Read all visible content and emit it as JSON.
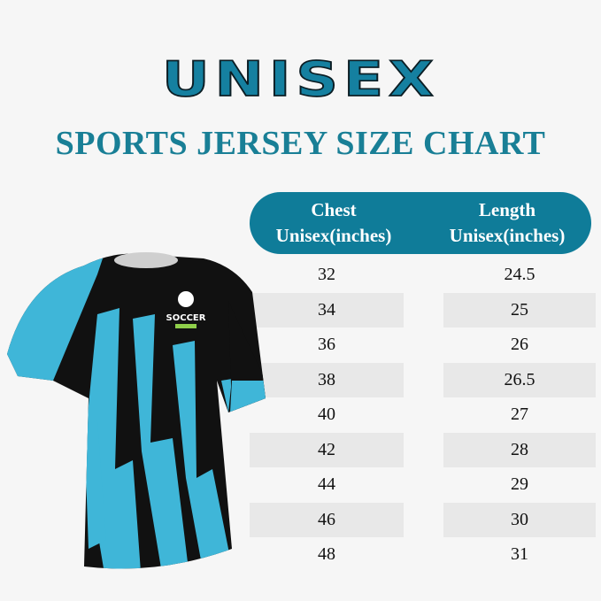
{
  "title": "UNISEX",
  "subtitle": "SPORTS JERSEY SIZE CHART",
  "table": {
    "headers": [
      {
        "line1": "Chest",
        "line2": "Unisex(inches)"
      },
      {
        "line1": "Length",
        "line2": "Unisex(inches)"
      }
    ],
    "rows": [
      {
        "chest": "32",
        "length": "24.5"
      },
      {
        "chest": "34",
        "length": "25"
      },
      {
        "chest": "36",
        "length": "26"
      },
      {
        "chest": "38",
        "length": "26.5"
      },
      {
        "chest": "40",
        "length": "27"
      },
      {
        "chest": "42",
        "length": "28"
      },
      {
        "chest": "44",
        "length": "29"
      },
      {
        "chest": "46",
        "length": "30"
      },
      {
        "chest": "48",
        "length": "31"
      }
    ]
  },
  "jersey": {
    "logo_text": "SOCCER",
    "colors": {
      "primary": "#111111",
      "accent": "#3fb6d8"
    }
  },
  "colors": {
    "header": "#0f7c99",
    "title": "#1580a0",
    "shade": "#e8e8e8"
  }
}
